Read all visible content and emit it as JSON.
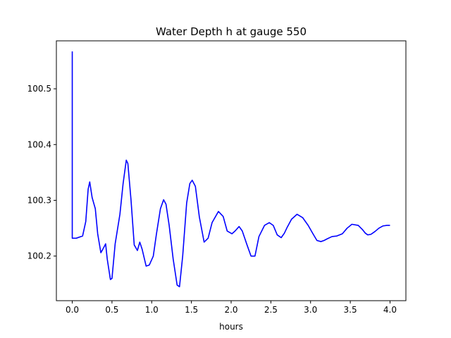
{
  "chart_data": {
    "type": "line",
    "title": "Water Depth h at gauge 550",
    "xlabel": "hours",
    "ylabel": "",
    "xlim": [
      -0.2,
      4.2
    ],
    "ylim": [
      100.12,
      100.586
    ],
    "xticks": [
      0.0,
      0.5,
      1.0,
      1.5,
      2.0,
      2.5,
      3.0,
      3.5,
      4.0
    ],
    "xtick_labels": [
      "0.0",
      "0.5",
      "1.0",
      "1.5",
      "2.0",
      "2.5",
      "3.0",
      "3.5",
      "4.0"
    ],
    "yticks": [
      100.2,
      100.3,
      100.4,
      100.5
    ],
    "ytick_labels": [
      "100.2",
      "100.3",
      "100.4",
      "100.5"
    ],
    "grid": false,
    "line_color": "#0000ff",
    "series": [
      {
        "x": [
          0.0,
          0.0,
          0.001,
          0.05,
          0.13,
          0.17,
          0.2,
          0.22,
          0.25,
          0.29,
          0.32,
          0.36,
          0.38,
          0.42,
          0.44,
          0.48,
          0.5,
          0.54,
          0.6,
          0.64,
          0.68,
          0.7,
          0.74,
          0.78,
          0.82,
          0.85,
          0.88,
          0.93,
          0.97,
          1.02,
          1.06,
          1.11,
          1.15,
          1.18,
          1.22,
          1.27,
          1.32,
          1.35,
          1.39,
          1.44,
          1.48,
          1.51,
          1.55,
          1.6,
          1.66,
          1.71,
          1.76,
          1.84,
          1.9,
          1.95,
          2.01,
          2.05,
          2.1,
          2.14,
          2.2,
          2.25,
          2.3,
          2.35,
          2.42,
          2.48,
          2.53,
          2.58,
          2.63,
          2.67,
          2.7,
          2.76,
          2.83,
          2.9,
          2.97,
          3.03,
          3.08,
          3.13,
          3.17,
          3.21,
          3.27,
          3.33,
          3.4,
          3.46,
          3.52,
          3.6,
          3.65,
          3.69,
          3.72,
          3.76,
          3.81,
          3.86,
          3.91,
          3.96,
          4.0
        ],
        "y": [
          100.567,
          100.232,
          100.232,
          100.232,
          100.236,
          100.262,
          100.32,
          100.333,
          100.305,
          100.285,
          100.24,
          100.206,
          100.211,
          100.222,
          100.195,
          100.158,
          100.16,
          100.222,
          100.275,
          100.33,
          100.372,
          100.366,
          100.3,
          100.22,
          100.21,
          100.225,
          100.212,
          100.182,
          100.184,
          100.2,
          100.24,
          100.285,
          100.301,
          100.293,
          100.255,
          100.195,
          100.148,
          100.145,
          100.2,
          100.295,
          100.33,
          100.336,
          100.325,
          100.27,
          100.225,
          100.232,
          100.26,
          100.28,
          100.271,
          100.245,
          100.24,
          100.245,
          100.253,
          100.245,
          100.22,
          100.2,
          100.2,
          100.235,
          100.255,
          100.26,
          100.255,
          100.238,
          100.233,
          100.241,
          100.25,
          100.266,
          100.275,
          100.269,
          100.255,
          100.24,
          100.228,
          100.226,
          100.228,
          100.231,
          100.235,
          100.236,
          100.24,
          100.25,
          100.257,
          100.255,
          100.248,
          100.241,
          100.238,
          100.239,
          100.244,
          100.25,
          100.254,
          100.255,
          100.255
        ]
      }
    ]
  }
}
